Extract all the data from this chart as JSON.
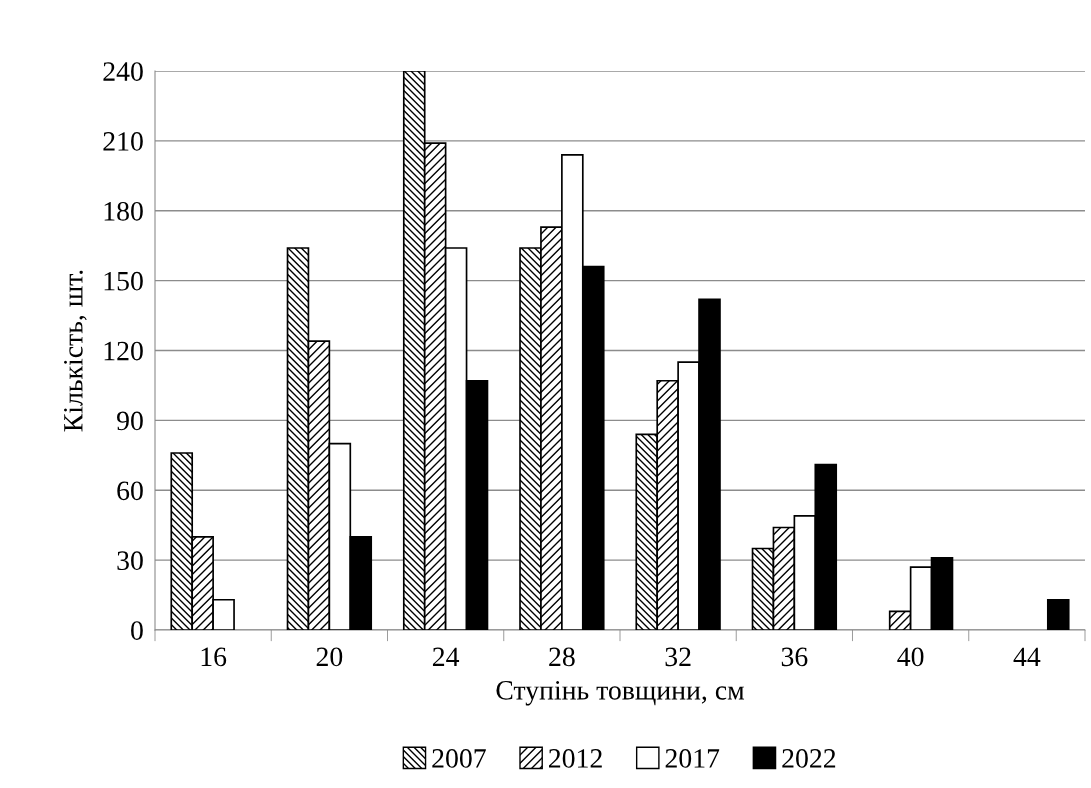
{
  "chart_data": {
    "type": "bar",
    "xlabel": "Ступінь товщини, см",
    "ylabel": "Кількість, шт.",
    "categories": [
      "16",
      "20",
      "24",
      "28",
      "32",
      "36",
      "40",
      "44"
    ],
    "series": [
      {
        "name": "2007",
        "color": "#000000",
        "values": [
          76,
          164,
          240,
          164,
          84,
          35,
          null,
          null
        ]
      },
      {
        "name": "2012",
        "color": "#000000",
        "values": [
          40,
          124,
          209,
          173,
          107,
          44,
          8,
          null
        ]
      },
      {
        "name": "2017",
        "color": "#ffffff",
        "values": [
          13,
          80,
          164,
          204,
          115,
          49,
          27,
          null
        ]
      },
      {
        "name": "2022",
        "color": "#000000",
        "values": [
          null,
          40,
          107,
          156,
          142,
          71,
          31,
          13
        ]
      }
    ],
    "ylim": [
      0,
      240
    ],
    "yticks": [
      0,
      30,
      60,
      90,
      120,
      150,
      180,
      210,
      240
    ],
    "grid": "y",
    "legend": "bottom"
  }
}
